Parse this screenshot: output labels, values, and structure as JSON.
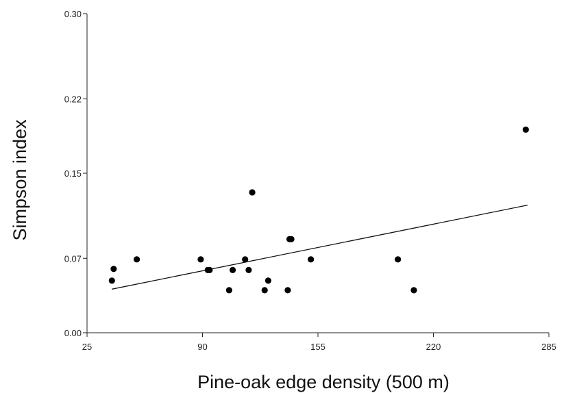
{
  "chart_data": {
    "type": "scatter",
    "xlabel": "Pine-oak edge density (500 m)",
    "ylabel": "Simpson index",
    "xlim": [
      25,
      285
    ],
    "ylim": [
      0,
      0.3
    ],
    "x_ticks": [
      25,
      90,
      155,
      220,
      285
    ],
    "x_tick_labels": [
      "25",
      "90",
      "155",
      "220",
      "285"
    ],
    "y_ticks": [
      0,
      0.07,
      0.15,
      0.22,
      0.3
    ],
    "y_tick_labels": [
      "0.00",
      "0.07",
      "0.15",
      "0.22",
      "0.30"
    ],
    "grid": false,
    "legend": "none",
    "series": [
      {
        "points": [
          {
            "x": 39,
            "y": 0.049
          },
          {
            "x": 40,
            "y": 0.06
          },
          {
            "x": 53,
            "y": 0.069
          },
          {
            "x": 89,
            "y": 0.069
          },
          {
            "x": 93,
            "y": 0.059
          },
          {
            "x": 94,
            "y": 0.059
          },
          {
            "x": 105,
            "y": 0.04
          },
          {
            "x": 107,
            "y": 0.059
          },
          {
            "x": 114,
            "y": 0.069
          },
          {
            "x": 116,
            "y": 0.059
          },
          {
            "x": 118,
            "y": 0.132
          },
          {
            "x": 125,
            "y": 0.04
          },
          {
            "x": 127,
            "y": 0.049
          },
          {
            "x": 138,
            "y": 0.04
          },
          {
            "x": 139,
            "y": 0.088
          },
          {
            "x": 140,
            "y": 0.088
          },
          {
            "x": 151,
            "y": 0.069
          },
          {
            "x": 200,
            "y": 0.069
          },
          {
            "x": 209,
            "y": 0.04
          },
          {
            "x": 272,
            "y": 0.191
          }
        ]
      }
    ],
    "trendline": {
      "x": [
        39,
        273
      ],
      "y": [
        0.041,
        0.12
      ]
    }
  }
}
